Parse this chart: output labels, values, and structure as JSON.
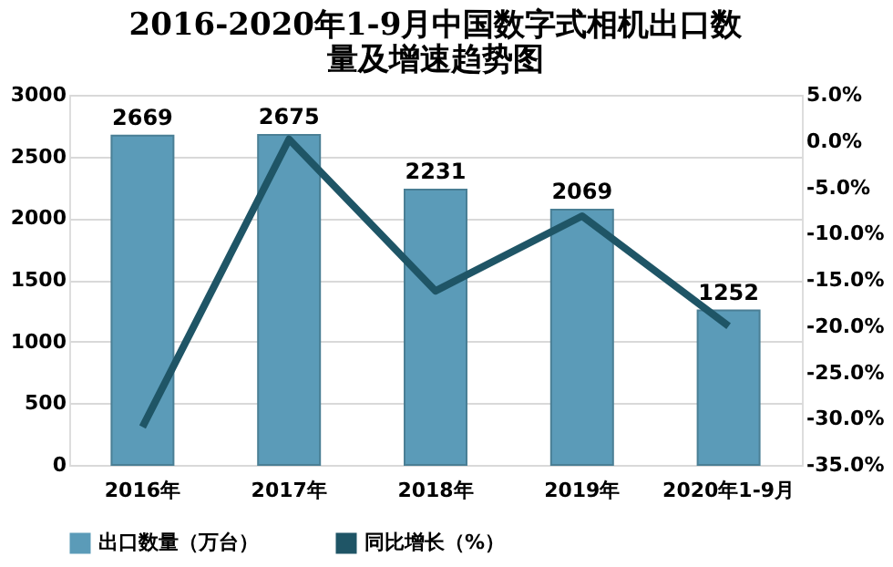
{
  "chart_data": {
    "type": "bar",
    "title": "2016-2020年1-9月中国数字式相机出口数量及增速趋势图",
    "categories": [
      "2016年",
      "2017年",
      "2018年",
      "2019年",
      "2020年1-9月"
    ],
    "series": [
      {
        "name": "出口数量（万台）",
        "color": "#5b9bb8",
        "values": [
          2669,
          2675,
          2231,
          2069,
          1252
        ],
        "value_labels": [
          "2669",
          "2675",
          "2231",
          "2069",
          "1252"
        ]
      },
      {
        "name": "同比增长（%）",
        "type": "line",
        "axis": "y2",
        "color": "#1f5566",
        "values": [
          -30.9,
          0.2,
          -16.2,
          -8.1,
          -20.0
        ]
      }
    ],
    "ylim": [
      0,
      3000
    ],
    "yticks": [
      0,
      500,
      1000,
      1500,
      2000,
      2500,
      3000
    ],
    "y2lim": [
      -35,
      5
    ],
    "y2ticks": [
      {
        "value": 5,
        "label": "5.0%"
      },
      {
        "value": 0,
        "label": "0.0%"
      },
      {
        "value": -5,
        "label": "-5.0%"
      },
      {
        "value": -10,
        "label": "-10.0%"
      },
      {
        "value": -15,
        "label": "-15.0%"
      },
      {
        "value": -20,
        "label": "-20.0%"
      },
      {
        "value": -25,
        "label": "-25.0%"
      },
      {
        "value": -30,
        "label": "-30.0%"
      },
      {
        "value": -35,
        "label": "-35.0%"
      }
    ],
    "grid": "y",
    "legend": "bottom",
    "line_style": "solid",
    "marker": "none"
  }
}
